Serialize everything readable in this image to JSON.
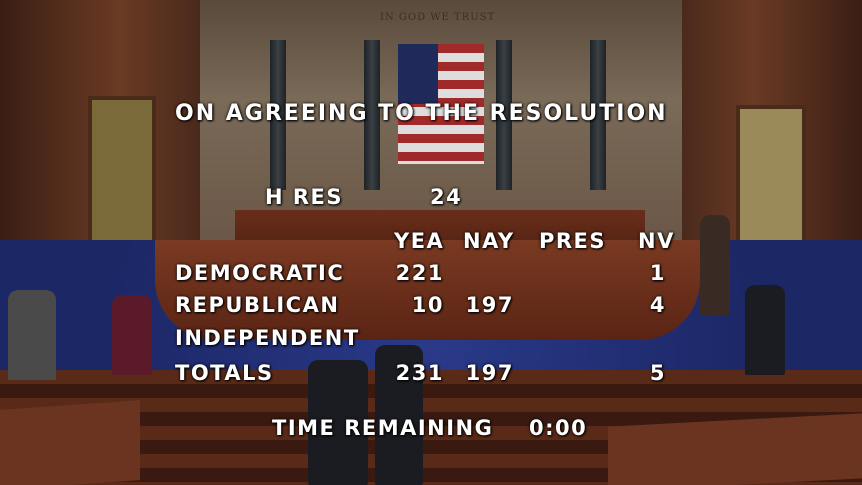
{
  "background": {
    "motto": "IN GOD WE TRUST"
  },
  "vote": {
    "title": "ON AGREEING TO THE RESOLUTION",
    "measure_label": "H RES",
    "measure_number": "24",
    "columns": [
      "YEA",
      "NAY",
      "PRES",
      "NV"
    ],
    "rows": [
      {
        "party": "DEMOCRATIC",
        "yea": "221",
        "nay": "",
        "pres": "",
        "nv": "1"
      },
      {
        "party": "REPUBLICAN",
        "yea": "10",
        "nay": "197",
        "pres": "",
        "nv": "4"
      },
      {
        "party": "INDEPENDENT",
        "yea": "",
        "nay": "",
        "pres": "",
        "nv": ""
      },
      {
        "party": "TOTALS",
        "yea": "231",
        "nay": "197",
        "pres": "",
        "nv": "5"
      }
    ],
    "time_label": "TIME REMAINING",
    "time_value": "0:00"
  }
}
